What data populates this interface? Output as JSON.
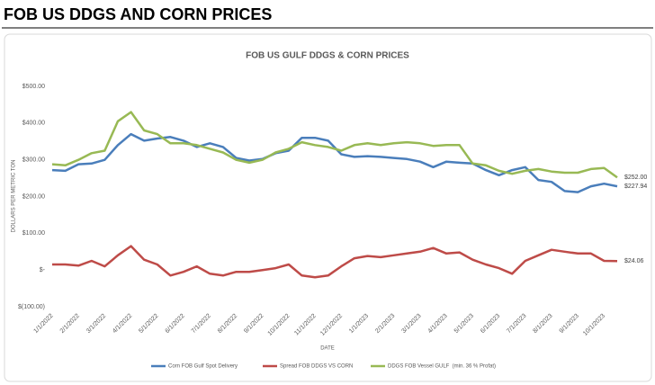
{
  "header": {
    "title": "FOB US DDGS AND CORN PRICES"
  },
  "chart_data": {
    "type": "line",
    "title": "FOB US GULF DDGS & CORN PRICES",
    "y_label": "DOLLARS PER METRIC TON",
    "x_label": "DATE",
    "categories": [
      "1/1/2022",
      null,
      "2/1/2022",
      null,
      "3/1/2022",
      null,
      "4/1/2022",
      null,
      "5/1/2022",
      null,
      "6/1/2022",
      null,
      "7/1/2022",
      null,
      "8/1/2022",
      null,
      "9/1/2022",
      null,
      "10/1/2022",
      null,
      "11/1/2022",
      null,
      "12/1/2022",
      null,
      "1/1/2023",
      null,
      "2/1/2023",
      null,
      "3/1/2023",
      null,
      "4/1/2023",
      null,
      "5/1/2023",
      null,
      "6/1/2023",
      null,
      "7/1/2023",
      null,
      "8/1/2023",
      null,
      "9/1/2023",
      null,
      "10/1/2023",
      null
    ],
    "series": [
      {
        "name": "Corn FOB Gulf Spot Delivery",
        "color": "#4a7ebb",
        "values": [
          272,
          270,
          288,
          290,
          300,
          340,
          370,
          352,
          358,
          362,
          352,
          335,
          345,
          335,
          305,
          298,
          302,
          318,
          325,
          360,
          360,
          352,
          315,
          308,
          310,
          308,
          305,
          302,
          295,
          280,
          295,
          292,
          290,
          272,
          258,
          272,
          280,
          245,
          240,
          215,
          212,
          228,
          235,
          227.94
        ],
        "value_labels": [
          null,
          null,
          null,
          null,
          null,
          null,
          null,
          null,
          null,
          null,
          null,
          null,
          null,
          null,
          null,
          null,
          null,
          null,
          null,
          null,
          null,
          null,
          null,
          null,
          null,
          null,
          null,
          null,
          null,
          null,
          null,
          null,
          null,
          null,
          null,
          null,
          null,
          null,
          null,
          null,
          null,
          null,
          null,
          "$227.94"
        ]
      },
      {
        "name": "Spread FOB DDGS VS CORN",
        "color": "#be4b48",
        "values": [
          15,
          15,
          12,
          25,
          10,
          40,
          65,
          28,
          15,
          -15,
          -5,
          10,
          -10,
          -15,
          -5,
          -5,
          0,
          5,
          15,
          -15,
          -20,
          -15,
          10,
          32,
          38,
          35,
          40,
          45,
          50,
          60,
          45,
          48,
          28,
          15,
          5,
          -10,
          25,
          40,
          55,
          50,
          45,
          45,
          25,
          24.06
        ],
        "value_labels": [
          null,
          null,
          null,
          null,
          null,
          null,
          null,
          null,
          null,
          null,
          null,
          null,
          null,
          null,
          null,
          null,
          null,
          null,
          null,
          null,
          null,
          null,
          null,
          null,
          null,
          null,
          null,
          null,
          null,
          null,
          null,
          null,
          null,
          null,
          null,
          null,
          null,
          null,
          null,
          null,
          null,
          null,
          null,
          "$24.06"
        ]
      },
      {
        "name": "DDGS FOB Vessel GULF  (min. 36 % Profat)",
        "color": "#98b954",
        "values": [
          288,
          285,
          300,
          318,
          325,
          405,
          430,
          380,
          370,
          345,
          345,
          340,
          330,
          320,
          300,
          292,
          300,
          320,
          330,
          348,
          340,
          335,
          325,
          340,
          345,
          340,
          345,
          348,
          345,
          338,
          340,
          340,
          290,
          285,
          270,
          262,
          270,
          275,
          268,
          265,
          265,
          275,
          278,
          252
        ],
        "value_labels": [
          null,
          null,
          null,
          null,
          null,
          null,
          null,
          null,
          null,
          null,
          null,
          null,
          null,
          null,
          null,
          null,
          null,
          null,
          null,
          null,
          null,
          null,
          null,
          null,
          null,
          null,
          null,
          null,
          null,
          null,
          null,
          null,
          null,
          null,
          null,
          null,
          null,
          null,
          null,
          null,
          null,
          null,
          null,
          "$252.00"
        ]
      }
    ],
    "ylim": [
      -100,
      500
    ],
    "yticks": [
      {
        "value": -100,
        "label": "$(100.00)"
      },
      {
        "value": 0,
        "label": "$-"
      },
      {
        "value": 100,
        "label": "$100.00"
      },
      {
        "value": 200,
        "label": "$200.00"
      },
      {
        "value": 300,
        "label": "$300.00"
      },
      {
        "value": 400,
        "label": "$400.00"
      },
      {
        "value": 500,
        "label": "$500.00"
      }
    ],
    "grid": false,
    "legend": "bottom"
  }
}
